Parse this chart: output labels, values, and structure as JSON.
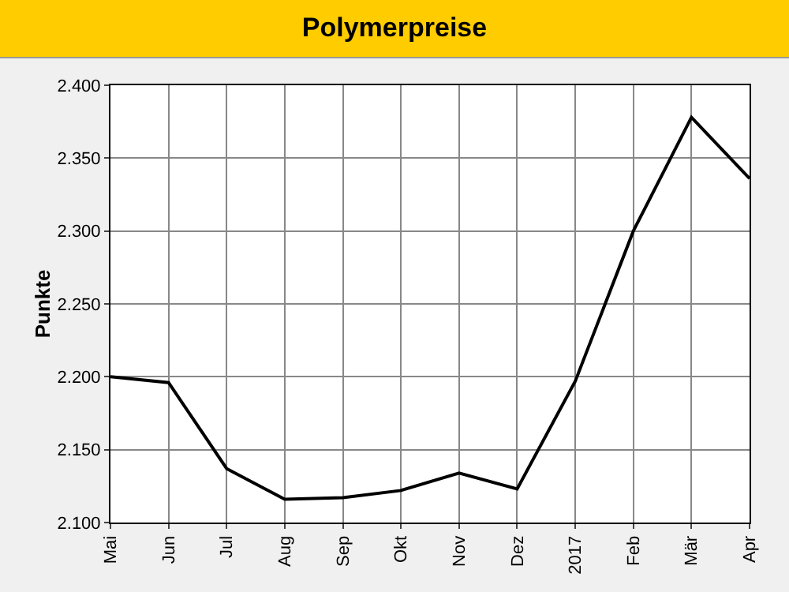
{
  "chart_data": {
    "type": "line",
    "title": "Polymerpreise",
    "ylabel": "Punkte",
    "categories": [
      "Mai",
      "Jun",
      "Jul",
      "Aug",
      "Sep",
      "Okt",
      "Nov",
      "Dez",
      "2017",
      "Feb",
      "Mär",
      "Apr"
    ],
    "series": [
      {
        "color": "#000000",
        "values": [
          2200,
          2196,
          2137,
          2116,
          2117,
          2122,
          2134,
          2123,
          2197,
          2300,
          2378,
          2336
        ]
      }
    ],
    "ylim": [
      2100,
      2400
    ],
    "yticks": [
      {
        "value": 2100,
        "label": "2.100"
      },
      {
        "value": 2150,
        "label": "2.150"
      },
      {
        "value": 2200,
        "label": "2.200"
      },
      {
        "value": 2250,
        "label": "2.250"
      },
      {
        "value": 2300,
        "label": "2.300"
      },
      {
        "value": 2350,
        "label": "2.350"
      },
      {
        "value": 2400,
        "label": "2.400"
      }
    ],
    "grid": true,
    "marker": "none",
    "line_style": "solid"
  }
}
